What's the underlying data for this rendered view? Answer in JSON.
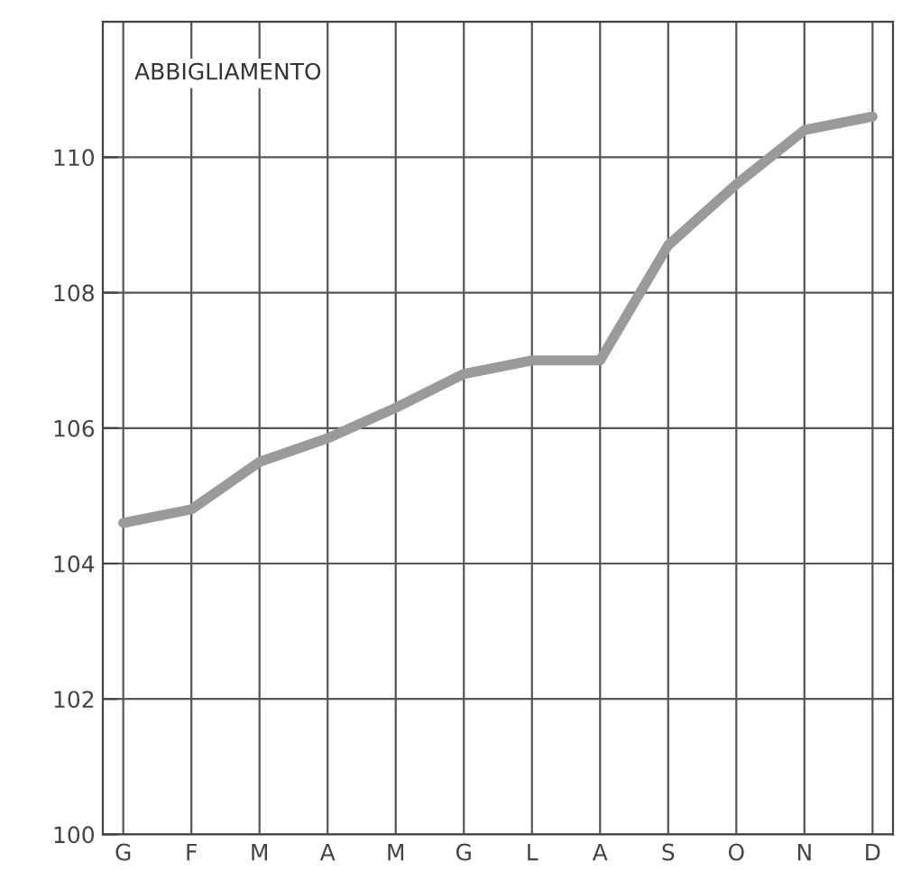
{
  "chart_data": {
    "type": "line",
    "title": "ABBIGLIAMENTO",
    "categories": [
      "G",
      "F",
      "M",
      "A",
      "M",
      "G",
      "L",
      "A",
      "S",
      "O",
      "N",
      "D"
    ],
    "series": [
      {
        "color": "#9a9a9a",
        "values": [
          104.6,
          104.8,
          105.5,
          105.85,
          106.3,
          106.8,
          107.0,
          107.0,
          108.7,
          109.6,
          110.4,
          110.6
        ]
      }
    ],
    "ylim": [
      100,
      112
    ],
    "yticks": [
      100,
      102,
      104,
      106,
      108,
      110
    ],
    "grid": true,
    "marker": "none",
    "line_style": "solid"
  }
}
